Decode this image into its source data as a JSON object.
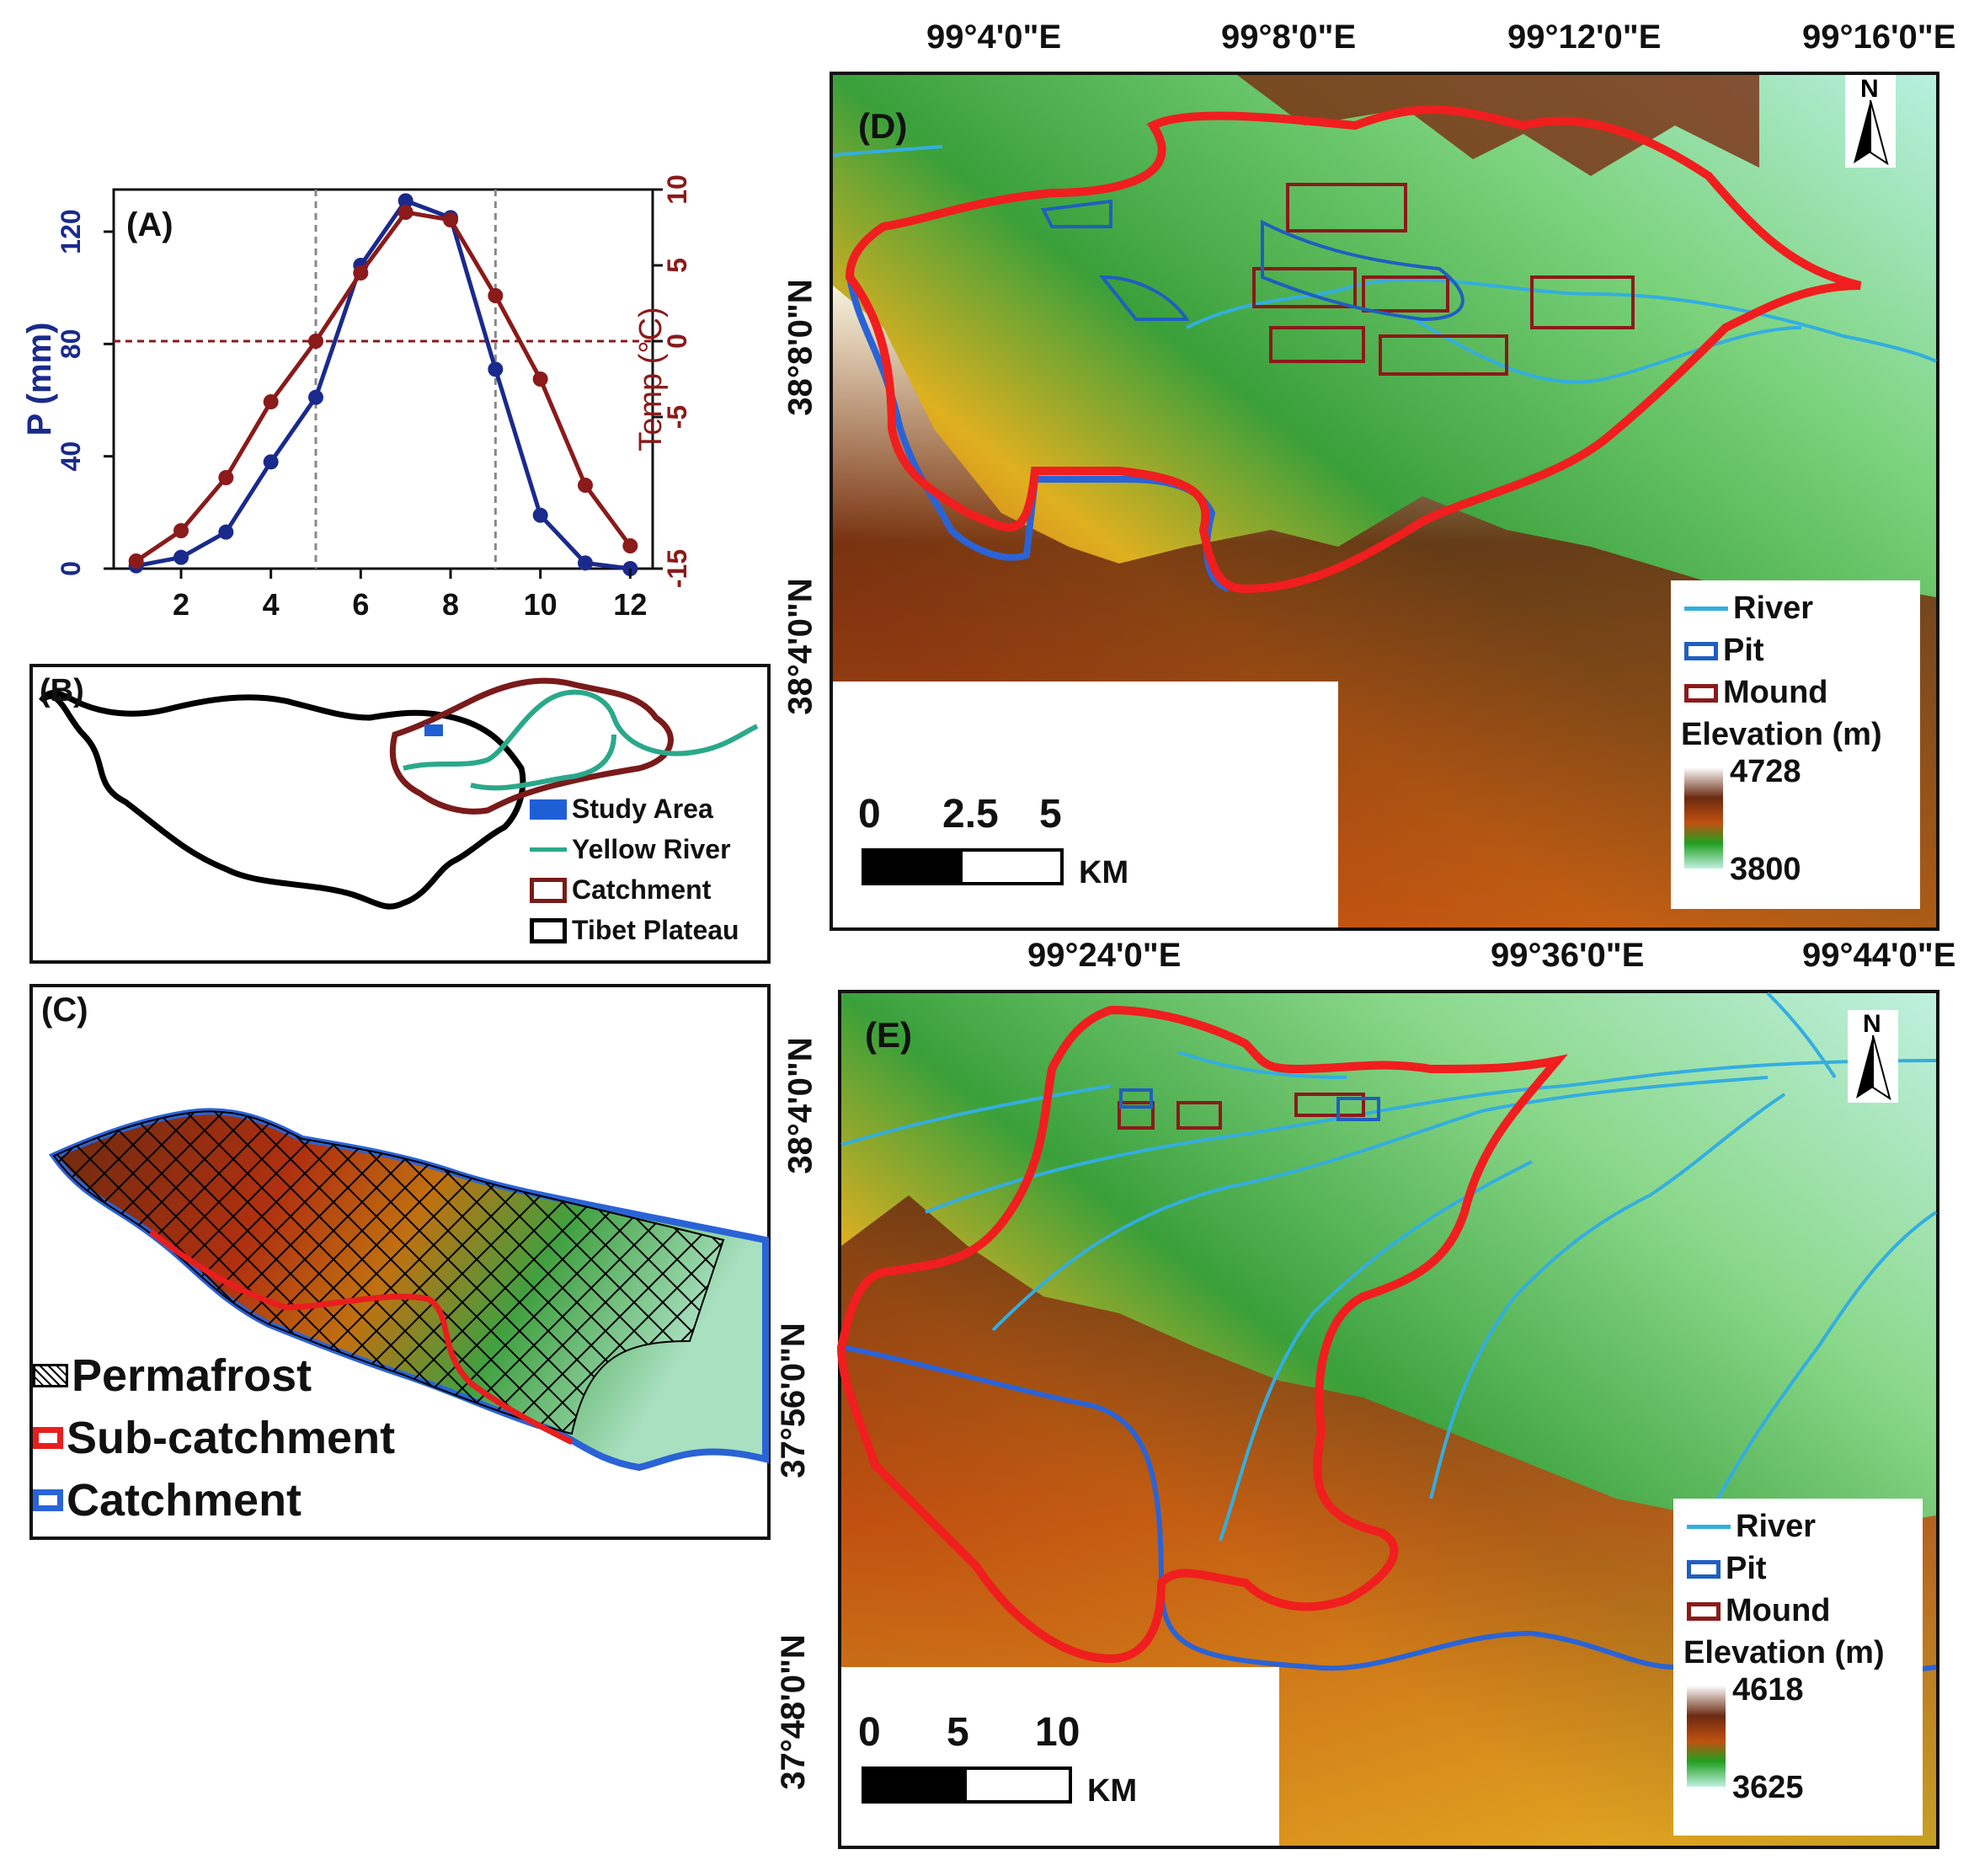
{
  "panelA": {
    "label": "(A)",
    "ylabel_left": "P (mm)",
    "ylabel_right": "Temp (°C)",
    "left_ticks": [
      "0",
      "40",
      "80",
      "120"
    ],
    "right_ticks": [
      "-15",
      "-5",
      "0",
      "5",
      "10"
    ],
    "x_ticks": [
      "2",
      "4",
      "6",
      "8",
      "10",
      "12"
    ]
  },
  "chart_data": {
    "type": "line",
    "x": [
      1,
      2,
      3,
      4,
      5,
      6,
      7,
      8,
      9,
      10,
      11,
      12
    ],
    "series": [
      {
        "axis": "left",
        "color": "#1a2a8c",
        "values": [
          1,
          4,
          13,
          38,
          61,
          108,
          131,
          125,
          71,
          19,
          2,
          0
        ]
      },
      {
        "axis": "right",
        "color": "#8b1a1a",
        "values": [
          -14.5,
          -12.5,
          -9,
          -4,
          0,
          4.5,
          8.5,
          8,
          3,
          -2.5,
          -9.5,
          -13.5
        ]
      }
    ],
    "ylim_left": [
      0,
      135
    ],
    "ylim_right": [
      -15,
      10
    ],
    "xlim": [
      0.5,
      12.5
    ],
    "reference_lines": {
      "vertical_x": [
        5,
        9
      ],
      "horizontal_right_y": 0
    },
    "grid": false
  },
  "panelB": {
    "label": "(B)",
    "legend": [
      {
        "label": "Study Area",
        "color": "#1f5fd6"
      },
      {
        "label": "Yellow River",
        "color": "#2aa88a"
      },
      {
        "label": "Catchment",
        "color": "#7a1a1a"
      },
      {
        "label": "Tibet Plateau",
        "color": "#000000"
      }
    ]
  },
  "panelC": {
    "label": "(C)",
    "legend": [
      {
        "label": "Permafrost",
        "color": "#000000"
      },
      {
        "label": "Sub-catchment",
        "color": "#e81e1e"
      },
      {
        "label": "Catchment",
        "color": "#2a63d6"
      }
    ]
  },
  "panelD": {
    "label": "(D)",
    "north": "N",
    "top_coords": [
      "99°4'0\"E",
      "99°8'0\"E",
      "99°12'0\"E",
      "99°16'0\"E"
    ],
    "left_coords": [
      "38°8'0\"N",
      "38°4'0\"N"
    ],
    "legend": {
      "river": "River",
      "pit": "Pit",
      "mound": "Mound",
      "elev_title": "Elevation (m)",
      "max": "4728",
      "min": "3800"
    },
    "scale": {
      "ticks": [
        "0",
        "2.5",
        "5"
      ],
      "unit": "KM"
    }
  },
  "panelE": {
    "label": "(E)",
    "north": "N",
    "top_coords": [
      "99°24'0\"E",
      "99°36'0\"E",
      "99°44'0\"E"
    ],
    "left_coords": [
      "38°4'0\"N",
      "37°56'0\"N",
      "37°48'0\"N"
    ],
    "legend": {
      "river": "River",
      "pit": "Pit",
      "mound": "Mound",
      "elev_title": "Elevation (m)",
      "max": "4618",
      "min": "3625"
    },
    "scale": {
      "ticks": [
        "0",
        "5",
        "10"
      ],
      "unit": "KM"
    }
  },
  "colors": {
    "precip": "#1a2a8c",
    "temp": "#8b1a1a",
    "subcatchment": "#e81e1e",
    "catchment": "#2a63d6",
    "river": "#33aee0",
    "pit": "#1f5fbf",
    "mound": "#8b1a1a"
  }
}
